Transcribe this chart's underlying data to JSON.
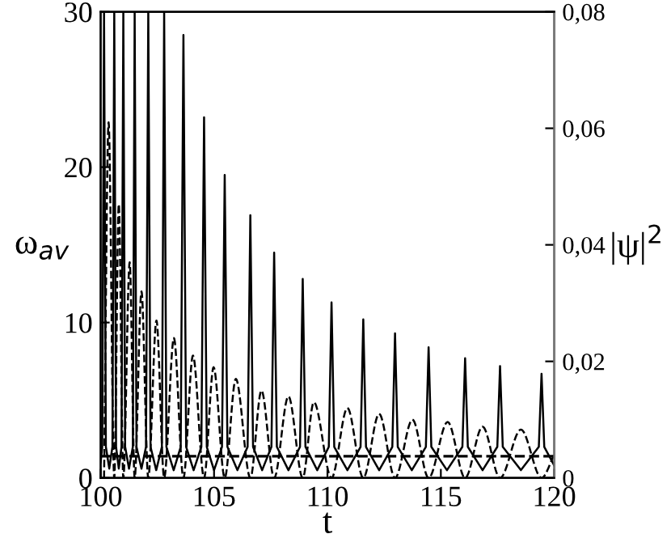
{
  "chart_data": {
    "type": "line",
    "xlabel": "t",
    "ylabel": "ω$_{av}$",
    "y2label": "|ψ|$^{2}$",
    "xlim": [
      100,
      120
    ],
    "xticks": [
      100,
      105,
      110,
      115,
      120
    ],
    "ylim": [
      0,
      30
    ],
    "yticks": [
      0,
      10,
      20,
      30
    ],
    "y2lim": [
      0,
      0.08
    ],
    "y2ticks": [
      {
        "value": 0,
        "label": "0"
      },
      {
        "value": 0.02,
        "label": "0,02"
      },
      {
        "value": 0.04,
        "label": "0,04"
      },
      {
        "value": 0.06,
        "label": "0,06"
      },
      {
        "value": 0.08,
        "label": "0,08"
      }
    ],
    "grid": false,
    "legend": false,
    "ref_lines": [
      {
        "axis": "y",
        "value": 1.4,
        "color": "#000000",
        "line_style": "dashed"
      }
    ],
    "series": [
      {
        "color": "#000000",
        "line_style": "solid",
        "x": [
          100,
          100.07,
          100.15,
          100.23,
          100.38,
          100.52,
          100.6,
          100.68,
          100.8,
          100.92,
          101.0,
          101.08,
          101.25,
          101.42,
          101.5,
          101.58,
          101.8,
          102.0,
          102.1,
          102.2,
          102.45,
          102.7,
          102.8,
          102.9,
          103.22,
          103.53,
          103.65,
          103.77,
          104.1,
          104.44,
          104.56,
          104.68,
          105.0,
          105.35,
          105.47,
          105.59,
          106.03,
          106.48,
          106.6,
          106.72,
          107.12,
          107.53,
          107.65,
          107.77,
          108.28,
          108.79,
          108.91,
          109.03,
          109.55,
          110.06,
          110.18,
          110.3,
          110.88,
          111.46,
          111.58,
          111.7,
          112.28,
          112.86,
          112.98,
          113.1,
          113.72,
          114.34,
          114.46,
          114.58,
          115.27,
          115.95,
          116.07,
          116.19,
          116.84,
          117.49,
          117.61,
          117.73,
          118.53,
          119.32,
          119.44,
          119.56,
          120
        ],
        "values": [
          1.0,
          2,
          30,
          2,
          0.6,
          2,
          30,
          2,
          0.6,
          2,
          30,
          2,
          0.6,
          2,
          30,
          2,
          0.6,
          2,
          30,
          2,
          0.5,
          2,
          30,
          2,
          0.5,
          2,
          28.5,
          2,
          0.5,
          2,
          23.2,
          2,
          0.5,
          2,
          19.5,
          2,
          0.5,
          2,
          16.9,
          2,
          0.5,
          2,
          14.5,
          2,
          0.5,
          2,
          12.8,
          2,
          0.5,
          2,
          11.3,
          2,
          0.5,
          2,
          10.2,
          2,
          0.5,
          2,
          9.3,
          2,
          0.5,
          2,
          8.4,
          2,
          0.5,
          2,
          7.7,
          2,
          0.5,
          2,
          7.2,
          2,
          0.5,
          2,
          6.7,
          2,
          0.8
        ]
      },
      {
        "color": "#000000",
        "line_style": "dashed",
        "axis": "y2",
        "x": [
          100.15,
          100.35,
          100.6,
          100.8,
          101.0,
          101.28,
          101.5,
          101.8,
          102.1,
          102.46,
          102.8,
          103.23,
          103.65,
          104.07,
          104.56,
          104.98,
          105.47,
          105.96,
          106.6,
          107.09,
          107.65,
          108.28,
          108.91,
          109.4,
          110.18,
          110.88,
          111.58,
          112.28,
          112.98,
          113.75,
          114.46,
          115.3,
          116.07,
          116.84,
          117.61,
          118.53,
          119.44,
          120
        ],
        "values": [
          0,
          0.061,
          0,
          0.047,
          0,
          0.037,
          0,
          0.032,
          0,
          0.027,
          0,
          0.024,
          0,
          0.021,
          0,
          0.019,
          0,
          0.017,
          0,
          0.015,
          0,
          0.014,
          0,
          0.013,
          0,
          0.012,
          0,
          0.011,
          0,
          0.01,
          0,
          0.0096,
          0,
          0.0088,
          0,
          0.0083,
          0,
          0.004
        ]
      }
    ]
  }
}
